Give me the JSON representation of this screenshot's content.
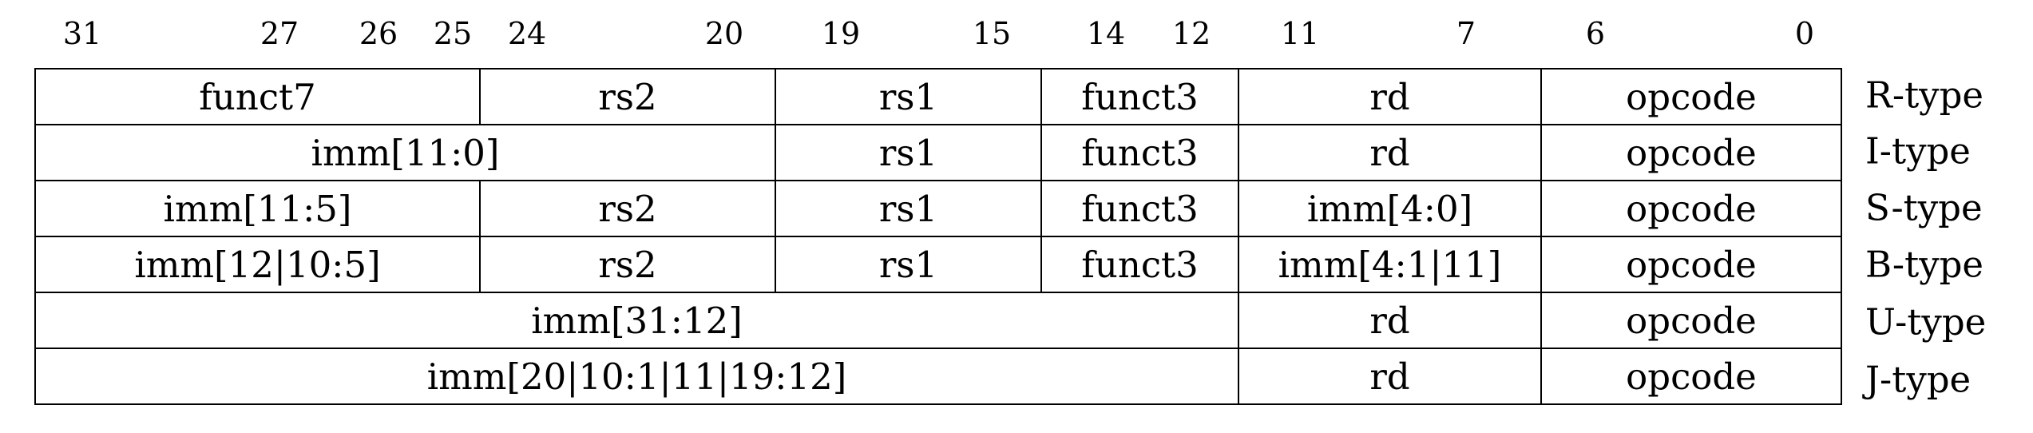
{
  "bit_positions": [
    "31",
    "27",
    "26",
    "25",
    "24",
    "20",
    "19",
    "15",
    "14",
    "12",
    "11",
    "7",
    "6",
    "0"
  ],
  "rows": [
    {
      "type_label": "R-type",
      "fields": [
        "funct7",
        "rs2",
        "rs1",
        "funct3",
        "rd",
        "opcode"
      ]
    },
    {
      "type_label": "I-type",
      "fields": [
        "imm[11:0]",
        "rs1",
        "funct3",
        "rd",
        "opcode"
      ]
    },
    {
      "type_label": "S-type",
      "fields": [
        "imm[11:5]",
        "rs2",
        "rs1",
        "funct3",
        "imm[4:0]",
        "opcode"
      ]
    },
    {
      "type_label": "B-type",
      "fields": [
        "imm[12|10:5]",
        "rs2",
        "rs1",
        "funct3",
        "imm[4:1|11]",
        "opcode"
      ]
    },
    {
      "type_label": "U-type",
      "fields": [
        "imm[31:12]",
        "rd",
        "opcode"
      ]
    },
    {
      "type_label": "J-type",
      "fields": [
        "imm[20|10:1|11|19:12]",
        "rd",
        "opcode"
      ]
    }
  ]
}
